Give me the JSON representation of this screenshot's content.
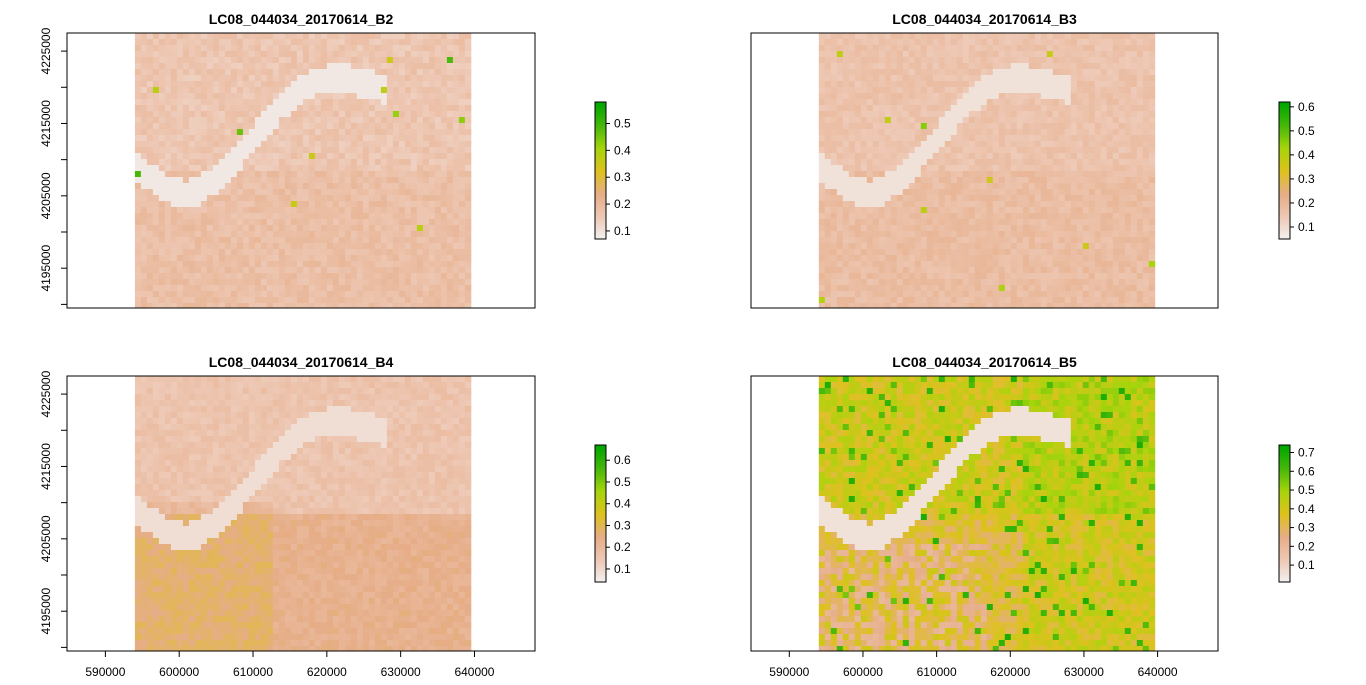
{
  "chart_data": [
    {
      "type": "heatmap",
      "title": "LC08_044034_20170614_B2",
      "xlabel": "",
      "ylabel": "",
      "x_ticks": [],
      "y_ticks": [
        "4225000",
        "4215000",
        "4205000",
        "4195000"
      ],
      "xlim": [
        584800,
        648200
      ],
      "ylim": [
        4189500,
        4227500
      ],
      "raster_extent_x": [
        594000,
        639000
      ],
      "raster_extent_y": [
        4189500,
        4227500
      ],
      "legend_ticks": [
        "0.5",
        "0.4",
        "0.3",
        "0.2",
        "0.1"
      ],
      "value_range": [
        0.07,
        0.58
      ],
      "colormap": [
        "#f2f2f2",
        "#eec9b6",
        "#e6ad88",
        "#dec11f",
        "#a8d40c",
        "#46b80a",
        "#00a600"
      ]
    },
    {
      "type": "heatmap",
      "title": "LC08_044034_20170614_B3",
      "xlabel": "",
      "ylabel": "",
      "x_ticks": [],
      "y_ticks": [],
      "xlim": [
        584800,
        648200
      ],
      "ylim": [
        4189500,
        4227500
      ],
      "raster_extent_x": [
        594000,
        639000
      ],
      "raster_extent_y": [
        4189500,
        4227500
      ],
      "legend_ticks": [
        "0.6",
        "0.5",
        "0.4",
        "0.3",
        "0.2",
        "0.1"
      ],
      "value_range": [
        0.05,
        0.62
      ],
      "colormap": [
        "#f2f2f2",
        "#eec9b6",
        "#e6ad88",
        "#dec11f",
        "#a8d40c",
        "#46b80a",
        "#00a600"
      ]
    },
    {
      "type": "heatmap",
      "title": "LC08_044034_20170614_B4",
      "xlabel": "",
      "ylabel": "",
      "x_ticks": [
        "590000",
        "600000",
        "610000",
        "620000",
        "630000",
        "640000"
      ],
      "y_ticks": [
        "4225000",
        "4215000",
        "4205000",
        "4195000"
      ],
      "xlim": [
        584800,
        648200
      ],
      "ylim": [
        4189500,
        4227500
      ],
      "raster_extent_x": [
        594000,
        639000
      ],
      "raster_extent_y": [
        4189500,
        4227500
      ],
      "legend_ticks": [
        "0.6",
        "0.5",
        "0.4",
        "0.3",
        "0.2",
        "0.1"
      ],
      "value_range": [
        0.04,
        0.67
      ],
      "colormap": [
        "#f2f2f2",
        "#eec9b6",
        "#e6ad88",
        "#dec11f",
        "#a8d40c",
        "#46b80a",
        "#00a600"
      ]
    },
    {
      "type": "heatmap",
      "title": "LC08_044034_20170614_B5",
      "xlabel": "",
      "ylabel": "",
      "x_ticks": [
        "590000",
        "600000",
        "610000",
        "620000",
        "630000",
        "640000"
      ],
      "y_ticks": [],
      "xlim": [
        584800,
        648200
      ],
      "ylim": [
        4189500,
        4227500
      ],
      "raster_extent_x": [
        594000,
        639000
      ],
      "raster_extent_y": [
        4189500,
        4227500
      ],
      "legend_ticks": [
        "0.7",
        "0.6",
        "0.5",
        "0.4",
        "0.3",
        "0.2",
        "0.1"
      ],
      "value_range": [
        0.01,
        0.74
      ],
      "colormap": [
        "#f2f2f2",
        "#eec9b6",
        "#e6ad88",
        "#dec11f",
        "#a8d40c",
        "#46b80a",
        "#00a600"
      ]
    }
  ]
}
